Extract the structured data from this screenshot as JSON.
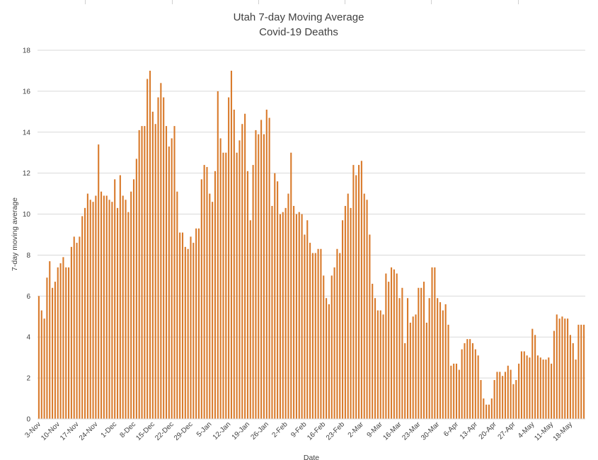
{
  "chart_data": {
    "type": "bar",
    "title": "Utah 7-day Moving Average",
    "subtitle": "Covid-19 Deaths",
    "xlabel": "Date",
    "ylabel": "7-day moving average",
    "ylim": [
      0,
      18
    ],
    "yticks": [
      0,
      2,
      4,
      6,
      8,
      10,
      12,
      14,
      16,
      18
    ],
    "grid": true,
    "bar_color": "#D97B2C",
    "x_tick_labels": [
      "3-Nov",
      "10-Nov",
      "17-Nov",
      "24-Nov",
      "1-Dec",
      "8-Dec",
      "15-Dec",
      "22-Dec",
      "29-Dec",
      "5-Jan",
      "12-Jan",
      "19-Jan",
      "26-Jan",
      "2-Feb",
      "9-Feb",
      "16-Feb",
      "23-Feb",
      "2-Mar",
      "9-Mar",
      "16-Mar",
      "23-Mar",
      "30-Mar",
      "6-Apr",
      "13-Apr",
      "20-Apr",
      "27-Apr",
      "4-May",
      "11-May",
      "18-May"
    ],
    "values": [
      6.0,
      5.3,
      4.9,
      6.9,
      7.7,
      6.4,
      6.7,
      7.4,
      7.6,
      7.9,
      7.4,
      7.4,
      8.4,
      8.9,
      8.6,
      8.9,
      9.9,
      10.3,
      11.0,
      10.7,
      10.6,
      10.9,
      13.4,
      11.1,
      10.9,
      10.9,
      10.7,
      10.6,
      11.7,
      10.3,
      11.9,
      10.9,
      10.7,
      10.1,
      11.1,
      11.7,
      12.7,
      14.1,
      14.3,
      14.3,
      16.6,
      17.0,
      15.0,
      14.4,
      15.7,
      16.4,
      15.7,
      14.3,
      13.3,
      13.7,
      14.3,
      11.1,
      9.1,
      9.1,
      8.4,
      8.3,
      8.9,
      8.6,
      9.3,
      9.3,
      11.7,
      12.4,
      12.3,
      11.0,
      10.6,
      12.1,
      16.0,
      13.7,
      13.0,
      13.0,
      15.7,
      17.0,
      15.1,
      13.0,
      13.6,
      14.4,
      14.9,
      12.1,
      9.7,
      12.4,
      14.1,
      13.9,
      14.6,
      13.9,
      15.1,
      14.7,
      10.4,
      12.0,
      11.6,
      10.0,
      10.1,
      10.3,
      11.0,
      13.0,
      10.4,
      10.0,
      10.1,
      10.0,
      9.0,
      9.7,
      8.6,
      8.1,
      8.1,
      8.3,
      8.3,
      7.0,
      5.9,
      5.6,
      7.0,
      7.4,
      8.3,
      8.1,
      9.7,
      10.4,
      11.0,
      10.3,
      12.4,
      11.9,
      12.4,
      12.6,
      11.0,
      10.7,
      9.0,
      6.6,
      5.9,
      5.3,
      5.3,
      5.1,
      7.1,
      6.7,
      7.4,
      7.3,
      7.1,
      5.9,
      6.4,
      3.7,
      5.9,
      4.7,
      5.0,
      5.1,
      6.4,
      6.4,
      6.7,
      4.7,
      5.9,
      7.4,
      7.4,
      5.9,
      5.7,
      5.3,
      5.6,
      4.6,
      2.6,
      2.7,
      2.7,
      2.4,
      3.4,
      3.7,
      3.9,
      3.9,
      3.7,
      3.4,
      3.1,
      1.9,
      1.0,
      0.7,
      0.7,
      1.0,
      1.9,
      2.3,
      2.3,
      2.1,
      2.3,
      2.6,
      2.4,
      1.7,
      1.9,
      2.7,
      3.3,
      3.3,
      3.1,
      3.0,
      4.4,
      4.1,
      3.1,
      3.0,
      2.9,
      2.9,
      3.0,
      2.7,
      4.3,
      5.1,
      4.9,
      5.0,
      4.9,
      4.9,
      4.1,
      3.7,
      2.9,
      4.6,
      4.6,
      4.6
    ]
  }
}
